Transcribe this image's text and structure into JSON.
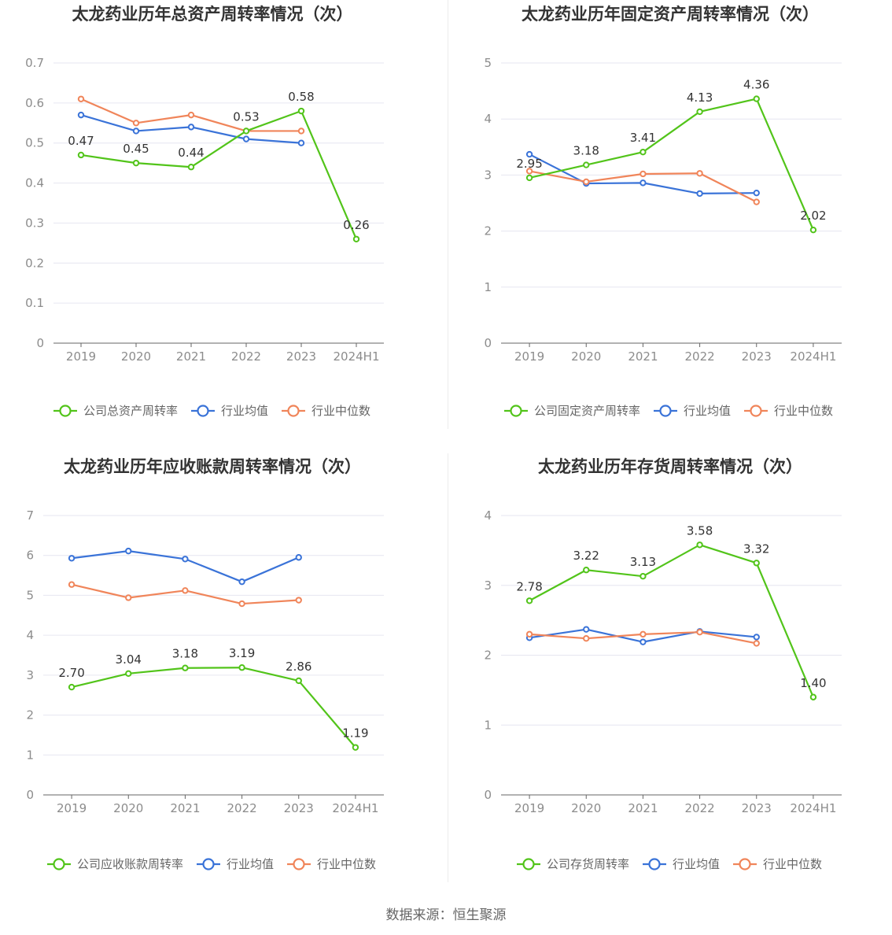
{
  "source_text": "数据来源：恒生聚源",
  "colors": {
    "company": "#52c41a",
    "avg": "#3a73d8",
    "median": "#f0855a",
    "grid": "#e6e6f0",
    "axis": "#666666"
  },
  "chart_data": [
    {
      "type": "line",
      "title": "太龙药业历年总资产周转率情况（次）",
      "categories": [
        "2019",
        "2020",
        "2021",
        "2022",
        "2023",
        "2024H1"
      ],
      "ylim": [
        0,
        0.7
      ],
      "yticks": [
        "0",
        "0.1",
        "0.2",
        "0.3",
        "0.4",
        "0.5",
        "0.6",
        "0.7"
      ],
      "series": [
        {
          "name": "公司总资产周转率",
          "values": [
            0.47,
            0.45,
            0.44,
            0.53,
            0.58,
            0.26
          ],
          "labels": [
            "0.47",
            "0.45",
            "0.44",
            "0.53",
            "0.58",
            "0.26"
          ]
        },
        {
          "name": "行业均值",
          "values": [
            0.57,
            0.53,
            0.54,
            0.51,
            0.5,
            null
          ]
        },
        {
          "name": "行业中位数",
          "values": [
            0.61,
            0.55,
            0.57,
            0.53,
            0.53,
            null
          ]
        }
      ]
    },
    {
      "type": "line",
      "title": "太龙药业历年固定资产周转率情况（次）",
      "categories": [
        "2019",
        "2020",
        "2021",
        "2022",
        "2023",
        "2024H1"
      ],
      "ylim": [
        0,
        5
      ],
      "yticks": [
        "0",
        "1",
        "2",
        "3",
        "4",
        "5"
      ],
      "series": [
        {
          "name": "公司固定资产周转率",
          "values": [
            2.95,
            3.18,
            3.41,
            4.13,
            4.36,
            2.02
          ],
          "labels": [
            "2.95",
            "3.18",
            "3.41",
            "4.13",
            "4.36",
            "2.02"
          ]
        },
        {
          "name": "行业均值",
          "values": [
            3.37,
            2.85,
            2.86,
            2.67,
            2.68,
            null
          ]
        },
        {
          "name": "行业中位数",
          "values": [
            3.07,
            2.88,
            3.02,
            3.03,
            2.52,
            null
          ]
        }
      ]
    },
    {
      "type": "line",
      "title": "太龙药业历年应收账款周转率情况（次）",
      "categories": [
        "2019",
        "2020",
        "2021",
        "2022",
        "2023",
        "2024H1"
      ],
      "ylim": [
        0,
        7
      ],
      "yticks": [
        "0",
        "1",
        "2",
        "3",
        "4",
        "5",
        "6",
        "7"
      ],
      "series": [
        {
          "name": "公司应收账款周转率",
          "values": [
            2.7,
            3.04,
            3.18,
            3.19,
            2.86,
            1.19
          ],
          "labels": [
            "2.70",
            "3.04",
            "3.18",
            "3.19",
            "2.86",
            "1.19"
          ]
        },
        {
          "name": "行业均值",
          "values": [
            5.93,
            6.11,
            5.91,
            5.34,
            5.95,
            null
          ]
        },
        {
          "name": "行业中位数",
          "values": [
            5.27,
            4.94,
            5.12,
            4.79,
            4.88,
            null
          ]
        }
      ]
    },
    {
      "type": "line",
      "title": "太龙药业历年存货周转率情况（次）",
      "categories": [
        "2019",
        "2020",
        "2021",
        "2022",
        "2023",
        "2024H1"
      ],
      "ylim": [
        0,
        4
      ],
      "yticks": [
        "0",
        "1",
        "2",
        "3",
        "4"
      ],
      "series": [
        {
          "name": "公司存货周转率",
          "values": [
            2.78,
            3.22,
            3.13,
            3.58,
            3.32,
            1.4
          ],
          "labels": [
            "2.78",
            "3.22",
            "3.13",
            "3.58",
            "3.32",
            "1.40"
          ]
        },
        {
          "name": "行业均值",
          "values": [
            2.25,
            2.37,
            2.19,
            2.34,
            2.26,
            null
          ]
        },
        {
          "name": "行业中位数",
          "values": [
            2.3,
            2.24,
            2.3,
            2.33,
            2.17,
            null
          ]
        }
      ]
    }
  ]
}
